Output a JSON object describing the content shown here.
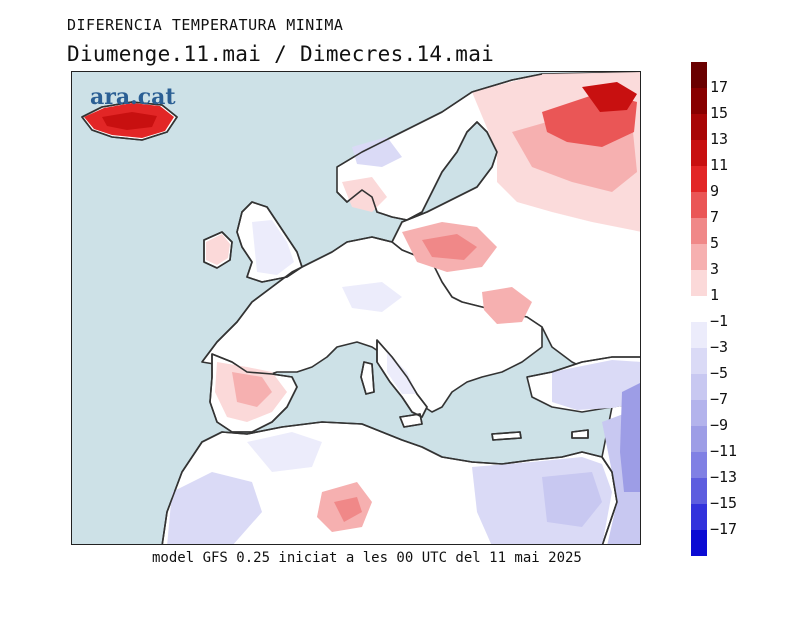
{
  "header": {
    "subtitle": "DIFERENCIA TEMPERATURA MINIMA",
    "title": "Diumenge.11.mai / Dimecres.14.mai"
  },
  "footer": {
    "text": "model GFS 0.25 iniciat a les 00 UTC del 11 mai 2025"
  },
  "logo": {
    "text": "ara.cat"
  },
  "colors": {
    "sea": "#cde1e7",
    "land_neutral": "#ffffff",
    "warm": [
      "#fbd9d9",
      "#f6b0b0",
      "#f08888",
      "#ea5656",
      "#e22626",
      "#c81010",
      "#a80606",
      "#880000",
      "#6a0000"
    ],
    "cold": [
      "#ececfb",
      "#dadaf6",
      "#c8c8f1",
      "#b3b3ec",
      "#9d9de6",
      "#8080e4",
      "#5d5ddf",
      "#3232dc",
      "#0b0bd3"
    ]
  },
  "legend": {
    "labels": [
      "17",
      "15",
      "13",
      "11",
      "9",
      "7",
      "5",
      "3",
      "1",
      "−1",
      "−3",
      "−5",
      "−7",
      "−9",
      "−11",
      "−13",
      "−15",
      "−17"
    ]
  }
}
